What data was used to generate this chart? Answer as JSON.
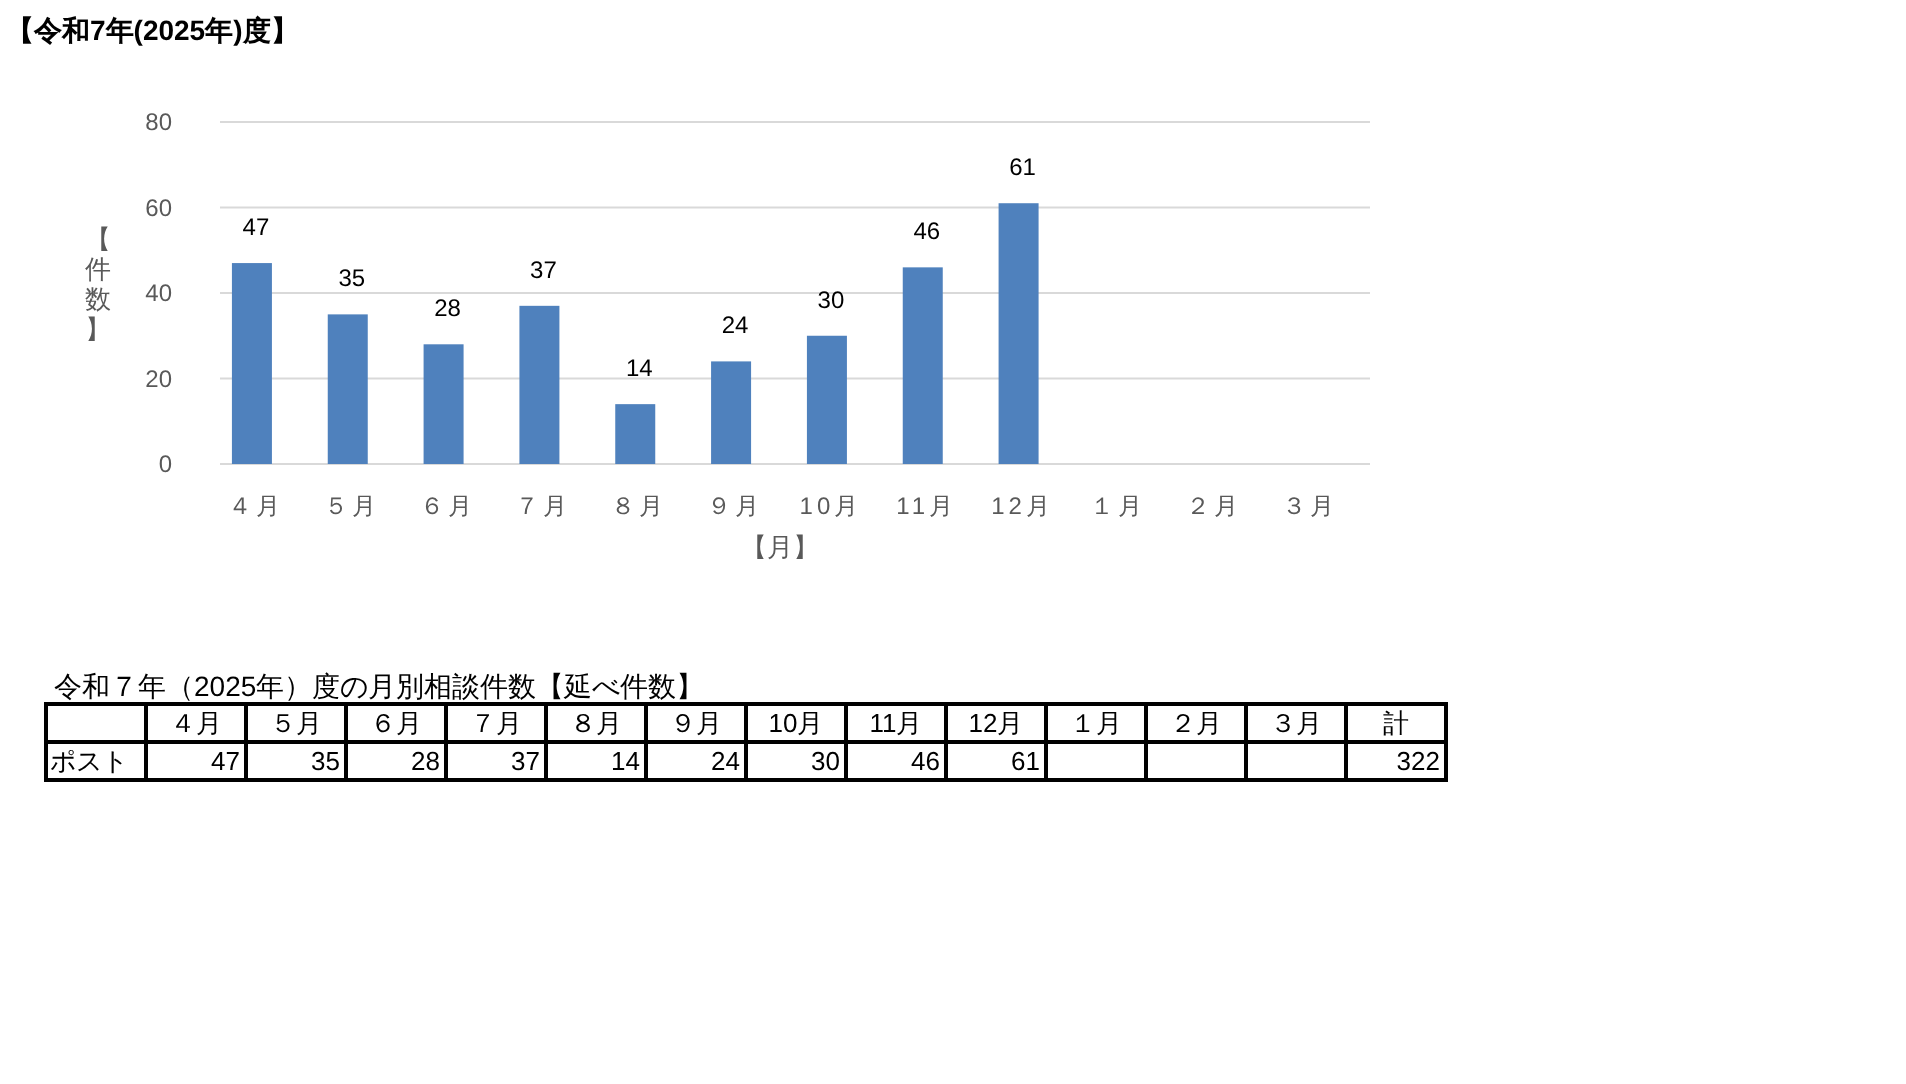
{
  "chart_data": {
    "type": "bar",
    "title": "【令和7年(2025年)度】",
    "xlabel": "【月】",
    "ylabel": "【件数】",
    "categories": [
      "４月",
      "５月",
      "６月",
      "７月",
      "８月",
      "９月",
      "10月",
      "11月",
      "12月",
      "１月",
      "２月",
      "３月"
    ],
    "series": [
      {
        "color": "#4f81bd",
        "values": [
          47,
          35,
          28,
          37,
          14,
          24,
          30,
          46,
          61,
          null,
          null,
          null
        ]
      }
    ],
    "ylim": [
      0,
      80
    ],
    "yticks": [
      0,
      20,
      40,
      60,
      80
    ],
    "grid": "y",
    "data_labels": true,
    "annotations": [
      "令和７年（2025年）度の月別相談件数【延べ件数】",
      "計",
      "322",
      "ポスト",
      "47",
      "35",
      "28",
      "37",
      "14",
      "24",
      "30",
      "46",
      "61"
    ]
  }
}
